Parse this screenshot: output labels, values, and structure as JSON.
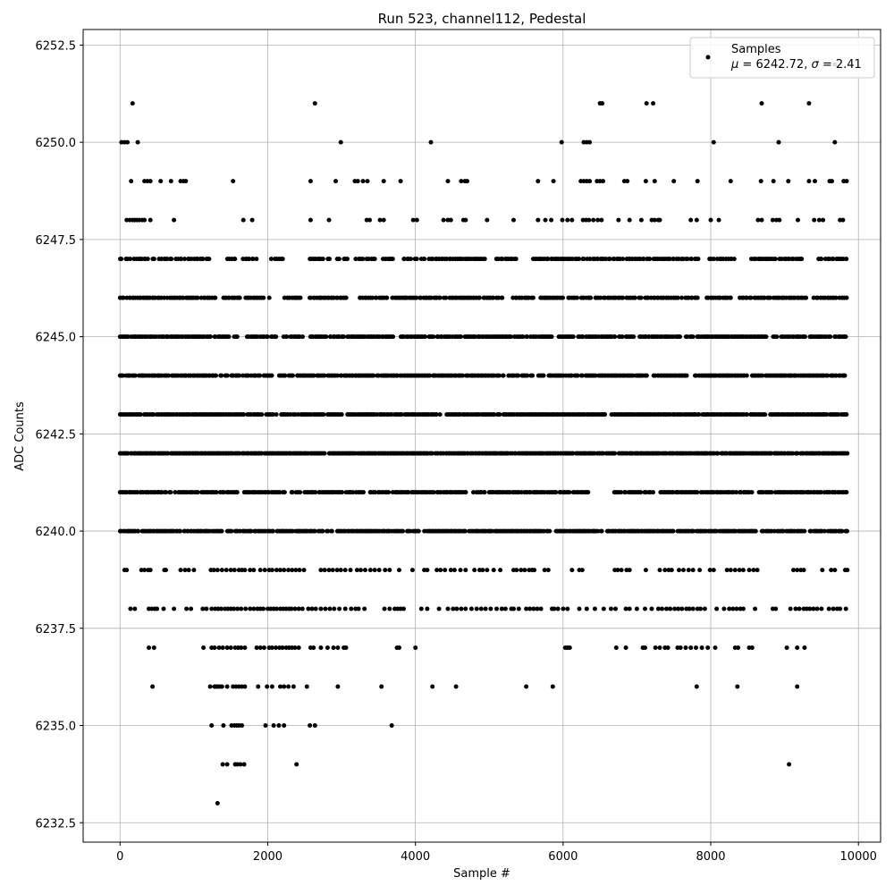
{
  "chart_data": {
    "type": "scatter",
    "title": "Run 523, channel112, Pedestal",
    "xlabel": "Sample #",
    "ylabel": "ADC Counts",
    "xlim": [
      -500,
      10300
    ],
    "ylim": [
      6232,
      6252.9
    ],
    "x_ticks": [
      0,
      2000,
      4000,
      6000,
      8000,
      10000
    ],
    "x_tick_labels": [
      "0",
      "2000",
      "4000",
      "6000",
      "8000",
      "10000"
    ],
    "y_ticks": [
      6232.5,
      6235.0,
      6237.5,
      6240.0,
      6242.5,
      6245.0,
      6247.5,
      6250.0,
      6252.5
    ],
    "y_tick_labels": [
      "6232.5",
      "6235.0",
      "6237.5",
      "6240.0",
      "6242.5",
      "6245.0",
      "6247.5",
      "6250.0",
      "6252.5"
    ],
    "grid": true,
    "legend": {
      "position": "top-right",
      "series_label": "Samples",
      "stats_mu_symbol": "μ",
      "stats_mid": " = 6242.72, ",
      "stats_sigma_symbol": "σ",
      "stats_end": " = 2.41"
    },
    "marker_color": "#000000",
    "series": [
      {
        "name": "Samples",
        "levels": [
          {
            "y": 6252,
            "x": [
              9680
            ]
          },
          {
            "y": 6251,
            "x": [
              170,
              2640,
              6500,
              6530,
              7130,
              7220,
              8690,
              9330
            ]
          },
          {
            "y": 6250,
            "x": [
              20,
              60,
              100,
              240,
              4210,
              2990,
              5980,
              6280,
              6320,
              6360,
              8040,
              8920,
              9680
            ]
          },
          {
            "y": 6249,
            "x": [
              150,
              330,
              370,
              410,
              550,
              690,
              820,
              860,
              890,
              1530,
              2580,
              2920,
              3180,
              3220,
              3290,
              3350,
              3570,
              3800,
              4440,
              4620,
              4670,
              4700,
              5660,
              5870,
              6240,
              6280,
              6320,
              6360,
              6460,
              6500,
              6540,
              6830,
              6870,
              7120,
              7240,
              7500,
              7820,
              8270,
              8680,
              8850,
              9050,
              9330,
              9410,
              9610,
              9640,
              9800,
              9840
            ]
          },
          {
            "y": 6248,
            "x": [
              90,
              130,
              170,
              200,
              230,
              260,
              300,
              330,
              410,
              730,
              1670,
              1790,
              2580,
              2830,
              3340,
              3380,
              3520,
              3570,
              3970,
              4020,
              4380,
              4440,
              4480,
              4650,
              4680,
              4970,
              5330,
              5660,
              5760,
              5840,
              5990,
              6060,
              6120,
              6270,
              6310,
              6350,
              6410,
              6470,
              6520,
              6750,
              6900,
              7060,
              7200,
              7240,
              7290,
              7310,
              7730,
              7810,
              8000,
              8110,
              8640,
              8690,
              8840,
              8890,
              8930,
              9180,
              9400,
              9470,
              9520,
              9750,
              9790
            ]
          },
          {
            "y": 6247,
            "band": [
              0,
              9850
            ],
            "step": 27,
            "gaps": [
              [
                1260,
                1430
              ],
              [
                1560,
                1650
              ],
              [
                1860,
                2020
              ],
              [
                2230,
                2540
              ],
              [
                2840,
                2930
              ],
              [
                3080,
                3150
              ],
              [
                3450,
                3560
              ],
              [
                3700,
                3840
              ],
              [
                4960,
                5080
              ],
              [
                5380,
                5560
              ],
              [
                7840,
                7980
              ],
              [
                8320,
                8540
              ],
              [
                9240,
                9440
              ]
            ]
          },
          {
            "y": 6246,
            "band": [
              0,
              9850
            ],
            "step": 24,
            "gaps": [
              [
                1300,
                1400
              ],
              [
                1640,
                1700
              ],
              [
                2050,
                2200
              ],
              [
                2450,
                2560
              ],
              [
                3100,
                3220
              ],
              [
                5200,
                5300
              ],
              [
                5600,
                5680
              ],
              [
                7860,
                7940
              ],
              [
                8280,
                8380
              ],
              [
                9300,
                9360
              ]
            ]
          },
          {
            "y": 6245,
            "band": [
              0,
              9850
            ],
            "step": 22,
            "gaps": [
              [
                1480,
                1540
              ],
              [
                1600,
                1700
              ],
              [
                2140,
                2200
              ],
              [
                2500,
                2570
              ],
              [
                3700,
                3780
              ],
              [
                5860,
                5920
              ],
              [
                7600,
                7660
              ],
              [
                8760,
                8800
              ],
              [
                9280,
                9340
              ]
            ]
          },
          {
            "y": 6244,
            "band": [
              0,
              9850
            ],
            "step": 20,
            "gaps": [
              [
                1300,
                1360
              ],
              [
                2080,
                2140
              ],
              [
                2340,
                2400
              ],
              [
                5600,
                5660
              ],
              [
                7700,
                7760
              ],
              [
                8500,
                8560
              ]
            ]
          },
          {
            "y": 6243,
            "band": [
              0,
              9850
            ],
            "step": 19,
            "gaps": [
              [
                1680,
                1720
              ],
              [
                2120,
                2180
              ],
              [
                3020,
                3080
              ],
              [
                4360,
                4420
              ],
              [
                6580,
                6640
              ],
              [
                8760,
                8800
              ]
            ]
          },
          {
            "y": 6242,
            "band": [
              0,
              9850
            ],
            "step": 18,
            "gaps": []
          },
          {
            "y": 6241,
            "band": [
              0,
              9850
            ],
            "step": 23,
            "gaps": [
              [
                1600,
                1680
              ],
              [
                2230,
                2290
              ],
              [
                3300,
                3380
              ],
              [
                4700,
                4760
              ],
              [
                6360,
                6690
              ],
              [
                7220,
                7290
              ],
              [
                8580,
                8640
              ]
            ]
          },
          {
            "y": 6240,
            "band": [
              0,
              9850
            ],
            "step": 21,
            "gaps": [
              [
                1380,
                1440
              ],
              [
                2880,
                2940
              ],
              [
                4060,
                4120
              ],
              [
                6540,
                6590
              ],
              [
                8620,
                8680
              ],
              [
                9280,
                9330
              ]
            ]
          },
          {
            "y": 6239,
            "x": [
              60,
              90,
              290,
              330,
              380,
              410,
              600,
              620,
              820,
              880,
              930,
              1000,
              1230,
              1270,
              1320,
              1380,
              1440,
              1500,
              1550,
              1610,
              1650,
              1690,
              1760,
              1810,
              1900,
              1960,
              2020,
              2060,
              2120,
              2170,
              2220,
              2280,
              2330,
              2380,
              2430,
              2490,
              2720,
              2770,
              2830,
              2880,
              2940,
              2990,
              3050,
              3120,
              3210,
              3260,
              3320,
              3390,
              3450,
              3510,
              3590,
              3650,
              3780,
              3960,
              4120,
              4160,
              4290,
              4340,
              4400,
              4480,
              4530,
              4610,
              4680,
              4800,
              4870,
              4910,
              4970,
              5060,
              5150,
              5330,
              5370,
              5430,
              5480,
              5540,
              5580,
              5610,
              5750,
              5800,
              6120,
              6220,
              6260,
              6700,
              6740,
              6790,
              6860,
              6900,
              7120,
              7310,
              7380,
              7430,
              7470,
              7570,
              7630,
              7700,
              7760,
              7850,
              7990,
              8040,
              8220,
              8270,
              8330,
              8390,
              8440,
              8520,
              8580,
              8630,
              9120,
              9170,
              9220,
              9260,
              9510,
              9630,
              9680,
              9820,
              9850
            ]
          },
          {
            "y": 6238,
            "x": [
              140,
              200,
              390,
              430,
              470,
              500,
              590,
              730,
              900,
              960,
              1120,
              1170,
              1240,
              1290,
              1330,
              1370,
              1420,
              1460,
              1500,
              1540,
              1590,
              1640,
              1700,
              1760,
              1810,
              1860,
              1900,
              1940,
              2000,
              2040,
              2080,
              2120,
              2170,
              2210,
              2250,
              2290,
              2320,
              2370,
              2420,
              2470,
              2550,
              2600,
              2650,
              2720,
              2780,
              2840,
              2900,
              2970,
              3050,
              3130,
              3190,
              3230,
              3310,
              3580,
              3650,
              3720,
              3760,
              3800,
              3840,
              4080,
              4160,
              4320,
              4440,
              4510,
              4560,
              4620,
              4680,
              4760,
              4830,
              4890,
              4950,
              5020,
              5100,
              5170,
              5220,
              5300,
              5330,
              5400,
              5500,
              5550,
              5600,
              5650,
              5700,
              5850,
              5880,
              5930,
              6000,
              6060,
              6220,
              6320,
              6430,
              6550,
              6650,
              6710,
              6850,
              6900,
              7000,
              7110,
              7200,
              7290,
              7340,
              7400,
              7450,
              7510,
              7560,
              7610,
              7670,
              7710,
              7760,
              7820,
              7860,
              7920,
              8080,
              8180,
              8250,
              8300,
              8350,
              8400,
              8440,
              8600,
              8840,
              8880,
              9080,
              9150,
              9200,
              9260,
              9300,
              9340,
              9390,
              9440,
              9500,
              9600,
              9660,
              9710,
              9750,
              9830
            ]
          },
          {
            "y": 6237,
            "x": [
              390,
              460,
              1130,
              1240,
              1280,
              1340,
              1390,
              1450,
              1500,
              1560,
              1600,
              1640,
              1690,
              1850,
              1900,
              1950,
              2020,
              2060,
              2110,
              2160,
              2200,
              2250,
              2290,
              2330,
              2370,
              2420,
              2580,
              2620,
              2720,
              2810,
              2890,
              2950,
              3030,
              3060,
              3750,
              3780,
              4000,
              6030,
              6060,
              6090,
              6720,
              6850,
              7080,
              7110,
              7250,
              7310,
              7380,
              7420,
              7550,
              7590,
              7660,
              7730,
              7800,
              7880,
              7960,
              8060,
              8330,
              8370,
              8520,
              8560,
              9030,
              9170,
              9270
            ]
          },
          {
            "y": 6236,
            "x": [
              440,
              1220,
              1280,
              1300,
              1320,
              1350,
              1380,
              1450,
              1530,
              1570,
              1610,
              1650,
              1690,
              1870,
              1990,
              2060,
              2170,
              2220,
              2280,
              2350,
              2530,
              2950,
              3540,
              4230,
              4550,
              5500,
              5860,
              7810,
              8360,
              9170
            ]
          },
          {
            "y": 6235,
            "x": [
              1240,
              1400,
              1510,
              1550,
              1580,
              1610,
              1650,
              1970,
              2080,
              2150,
              2220,
              2570,
              2640,
              3680
            ]
          },
          {
            "y": 6234,
            "x": [
              1390,
              1450,
              1560,
              1590,
              1630,
              1680,
              2390,
              9060
            ]
          },
          {
            "y": 6233,
            "x": [
              1320
            ]
          }
        ]
      }
    ]
  }
}
